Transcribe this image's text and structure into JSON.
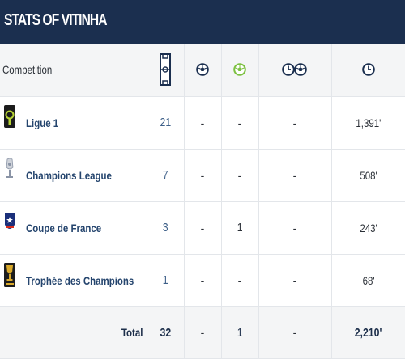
{
  "header": {
    "title": "STATS OF VITINHA"
  },
  "table": {
    "competition_header": "Competition",
    "column_icons": [
      "pitch-icon",
      "ball-icon",
      "ball-assist-icon",
      "clock-ball-icon",
      "clock-icon"
    ],
    "rows": [
      {
        "name": "Ligue 1",
        "logo": "ligue1-logo",
        "apps": "21",
        "goals": "-",
        "assists": "-",
        "clock_goal": "-",
        "minutes": "1,391'"
      },
      {
        "name": "Champions League",
        "logo": "champions-league-logo",
        "apps": "7",
        "goals": "-",
        "assists": "-",
        "clock_goal": "-",
        "minutes": "508'"
      },
      {
        "name": "Coupe de France",
        "logo": "coupe-de-france-logo",
        "apps": "3",
        "goals": "-",
        "assists": "1",
        "clock_goal": "-",
        "minutes": "243'"
      },
      {
        "name": "Trophée des Champions",
        "logo": "trophee-des-champions-logo",
        "apps": "1",
        "goals": "-",
        "assists": "-",
        "clock_goal": "-",
        "minutes": "68'"
      }
    ],
    "total": {
      "label": "Total",
      "apps": "32",
      "goals": "-",
      "assists": "1",
      "clock_goal": "-",
      "minutes": "2,210'"
    }
  },
  "colors": {
    "header_bg": "#1b2f4f",
    "link": "#25456e",
    "accent_green": "#7dc142"
  }
}
